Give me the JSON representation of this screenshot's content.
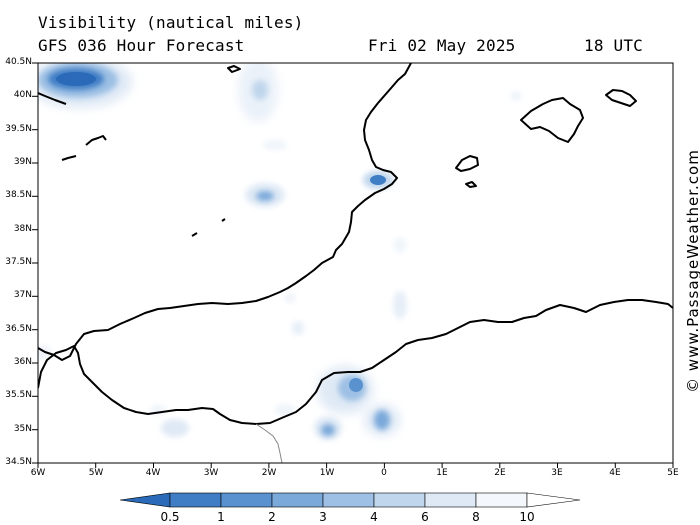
{
  "header": {
    "title": "Visibility (nautical miles)",
    "subtitle": "GFS 036 Hour Forecast",
    "date": "Fri 02 May 2025",
    "time": "18 UTC"
  },
  "credit": "© www.PassageWeather.com",
  "map": {
    "projection": "lat-lon",
    "lon_range": [
      -6,
      5
    ],
    "lat_range": [
      34.5,
      40.5
    ],
    "lat_ticks": [
      "40.5N",
      "40N",
      "39.5N",
      "39N",
      "38.5N",
      "38N",
      "37.5N",
      "37N",
      "36.5N",
      "36N",
      "35.5N",
      "35N",
      "34.5N"
    ],
    "lon_ticks": [
      "6W",
      "5W",
      "4W",
      "3W",
      "2W",
      "1W",
      "0",
      "1E",
      "2E",
      "3E",
      "4E",
      "5E"
    ],
    "low_visibility_areas": [
      {
        "lon": -5.3,
        "lat": 40.2,
        "min_visibility_nm": 0.5
      },
      {
        "lon": -2.1,
        "lat": 40.1,
        "min_visibility_nm": 6
      },
      {
        "lon": -2.2,
        "lat": 38.5,
        "min_visibility_nm": 4
      },
      {
        "lon": -0.1,
        "lat": 38.75,
        "min_visibility_nm": 1
      },
      {
        "lon": -0.6,
        "lat": 35.6,
        "min_visibility_nm": 2
      },
      {
        "lon": -0.1,
        "lat": 35.1,
        "min_visibility_nm": 3
      },
      {
        "lon": -1.0,
        "lat": 35.0,
        "min_visibility_nm": 3
      },
      {
        "lon": -3.8,
        "lat": 35.0,
        "min_visibility_nm": 6
      }
    ]
  },
  "colorbar": {
    "labels": [
      "0.5",
      "1",
      "2",
      "3",
      "4",
      "6",
      "8",
      "10"
    ],
    "colors": [
      "#2a6ab8",
      "#3f7dc4",
      "#5a92cf",
      "#7aa9da",
      "#9dc0e4",
      "#c0d6ec",
      "#dfe9f5",
      "#f4f8fc",
      "#ffffff"
    ]
  }
}
